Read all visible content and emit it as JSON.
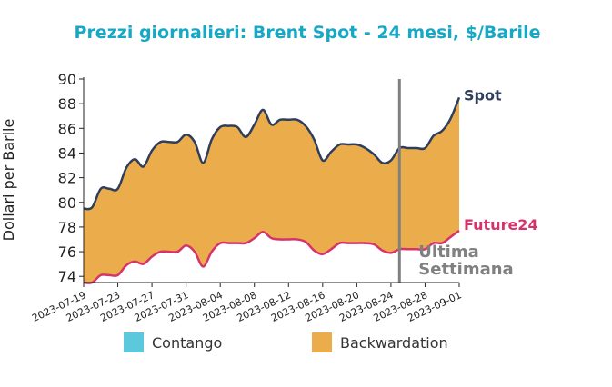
{
  "chart_data": {
    "type": "area",
    "title": "Prezzi giornalieri: Brent Spot - 24 mesi, $/Barile",
    "ylabel": "Dollari per Barile",
    "xlabel": "",
    "ylim": [
      73.5,
      90
    ],
    "yticks": [
      74,
      76,
      78,
      80,
      82,
      84,
      86,
      88,
      90
    ],
    "xlim": [
      "2023-07-19",
      "2023-09-01"
    ],
    "xticks": [
      "2023-07-19",
      "2023-07-23",
      "2023-07-27",
      "2023-07-31",
      "2023-08-04",
      "2023-08-08",
      "2023-08-12",
      "2023-08-16",
      "2023-08-20",
      "2023-08-24",
      "2023-08-28",
      "2023-09-01"
    ],
    "x": [
      "2023-07-19",
      "2023-07-20",
      "2023-07-21",
      "2023-07-22",
      "2023-07-23",
      "2023-07-24",
      "2023-07-25",
      "2023-07-26",
      "2023-07-27",
      "2023-07-28",
      "2023-07-29",
      "2023-07-30",
      "2023-07-31",
      "2023-08-01",
      "2023-08-02",
      "2023-08-03",
      "2023-08-04",
      "2023-08-05",
      "2023-08-06",
      "2023-08-07",
      "2023-08-08",
      "2023-08-09",
      "2023-08-10",
      "2023-08-11",
      "2023-08-12",
      "2023-08-13",
      "2023-08-14",
      "2023-08-15",
      "2023-08-16",
      "2023-08-17",
      "2023-08-18",
      "2023-08-19",
      "2023-08-20",
      "2023-08-21",
      "2023-08-22",
      "2023-08-23",
      "2023-08-24",
      "2023-08-25",
      "2023-08-26",
      "2023-08-27",
      "2023-08-28",
      "2023-08-29",
      "2023-08-30",
      "2023-08-31",
      "2023-09-01"
    ],
    "series": [
      {
        "name": "Spot",
        "color": "#2f3e5c",
        "values": [
          79.5,
          79.6,
          81.1,
          81.1,
          81.1,
          82.8,
          83.5,
          82.9,
          84.2,
          84.9,
          84.9,
          84.9,
          85.5,
          84.9,
          83.2,
          85.1,
          86.1,
          86.2,
          86.1,
          85.3,
          86.3,
          87.5,
          86.3,
          86.7,
          86.7,
          86.7,
          86.2,
          85.1,
          83.4,
          84.1,
          84.7,
          84.7,
          84.7,
          84.4,
          83.9,
          83.2,
          83.4,
          84.4,
          84.4,
          84.4,
          84.4,
          85.4,
          85.8,
          86.8,
          88.5
        ]
      },
      {
        "name": "Future24",
        "color": "#d6336c",
        "values": [
          73.5,
          73.5,
          74.1,
          74.1,
          74.1,
          74.9,
          75.2,
          75.0,
          75.6,
          76.0,
          76.0,
          76.0,
          76.5,
          76.0,
          74.8,
          76.0,
          76.7,
          76.7,
          76.7,
          76.7,
          77.1,
          77.6,
          77.1,
          77.0,
          77.0,
          77.0,
          76.8,
          76.1,
          75.8,
          76.2,
          76.7,
          76.7,
          76.7,
          76.7,
          76.6,
          76.1,
          75.9,
          76.2,
          76.2,
          76.2,
          76.2,
          76.7,
          76.7,
          77.2,
          77.7
        ]
      }
    ],
    "fill": {
      "between": [
        "Spot",
        "Future24"
      ],
      "backwardation_color": "#ebac4c",
      "contango_color": "#5bc8dc"
    },
    "marker_line": {
      "x": "2023-08-25",
      "color": "#808080",
      "label_line1": "Ultima",
      "label_line2": "Settimana"
    },
    "legend": {
      "placement": "bottom",
      "items": [
        {
          "label": "Contango",
          "color": "#5bc8dc"
        },
        {
          "label": "Backwardation",
          "color": "#ebac4c"
        }
      ]
    },
    "title_color": "#17a8c6",
    "grid": false
  }
}
